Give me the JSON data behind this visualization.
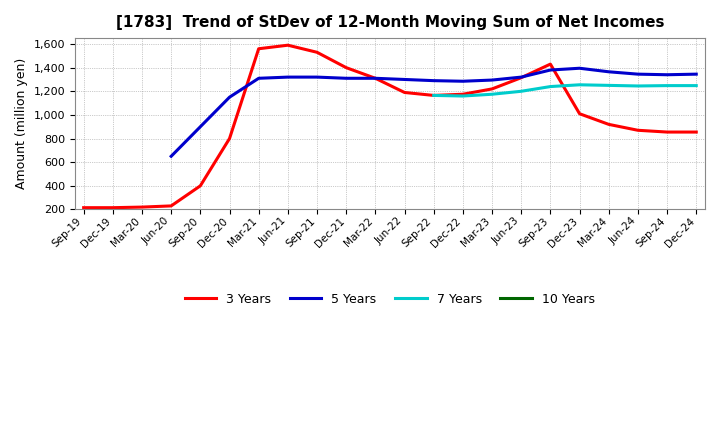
{
  "title": "[1783]  Trend of StDev of 12-Month Moving Sum of Net Incomes",
  "ylabel": "Amount (million yen)",
  "background_color": "#ffffff",
  "grid_color": "#aaaaaa",
  "ylim": [
    200,
    1650
  ],
  "yticks": [
    200,
    400,
    600,
    800,
    1000,
    1200,
    1400,
    1600
  ],
  "series": {
    "3 Years": {
      "color": "#ff0000",
      "data": [
        215,
        215,
        220,
        230,
        400,
        800,
        1560,
        1590,
        1530,
        1400,
        1310,
        1190,
        1165,
        1175,
        1220,
        1315,
        1430,
        1010,
        920,
        870,
        855,
        855
      ]
    },
    "5 Years": {
      "color": "#0000cc",
      "data": [
        null,
        null,
        null,
        650,
        900,
        1150,
        1310,
        1320,
        1320,
        1310,
        1310,
        1300,
        1290,
        1285,
        1295,
        1320,
        1380,
        1395,
        1365,
        1345,
        1340,
        1345
      ]
    },
    "7 Years": {
      "color": "#00cccc",
      "data": [
        null,
        null,
        null,
        null,
        null,
        null,
        null,
        null,
        null,
        null,
        null,
        null,
        1165,
        1160,
        1175,
        1200,
        1240,
        1255,
        1250,
        1245,
        1248,
        1248
      ]
    },
    "10 Years": {
      "color": "#006600",
      "data": [
        null,
        null,
        null,
        null,
        null,
        null,
        null,
        null,
        null,
        null,
        null,
        null,
        null,
        null,
        null,
        null,
        null,
        null,
        null,
        null,
        null,
        null
      ]
    }
  },
  "xtick_labels": [
    "Sep-19",
    "Dec-19",
    "Mar-20",
    "Jun-20",
    "Sep-20",
    "Dec-20",
    "Mar-21",
    "Jun-21",
    "Sep-21",
    "Dec-21",
    "Mar-22",
    "Jun-22",
    "Sep-22",
    "Dec-22",
    "Mar-23",
    "Jun-23",
    "Sep-23",
    "Dec-23",
    "Mar-24",
    "Jun-24",
    "Sep-24",
    "Dec-24"
  ],
  "legend_order": [
    "3 Years",
    "5 Years",
    "7 Years",
    "10 Years"
  ]
}
